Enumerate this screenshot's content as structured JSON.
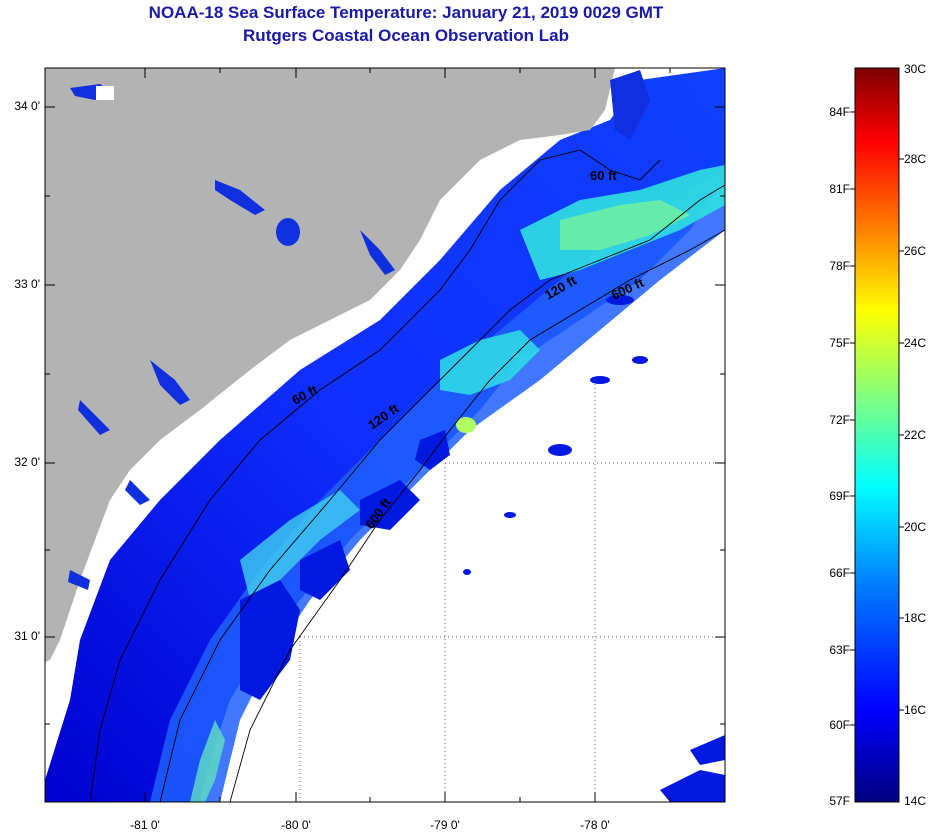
{
  "title": {
    "line1": "NOAA-18 Sea Surface Temperature:  January 21, 2019 0029 GMT",
    "line2": "Rutgers Coastal Ocean Observation Lab"
  },
  "map": {
    "lat_labels": [
      "34 0'",
      "33 0'",
      "32 0'",
      "31 0'"
    ],
    "lon_labels": [
      "-81 0'",
      "-80 0'",
      "-79 0'",
      "-78 0'"
    ],
    "contour_labels": [
      "60 ft",
      "120 ft",
      "600 ft",
      "60 ft",
      "120 ft",
      "600 ft"
    ],
    "colors": {
      "land": "#b3b3b3",
      "no_data": "#ffffff",
      "outline": "#000000"
    }
  },
  "colorbar": {
    "fahrenheit_labels": [
      "84F",
      "81F",
      "78F",
      "75F",
      "72F",
      "69F",
      "66F",
      "63F",
      "60F",
      "57F"
    ],
    "celsius_labels": [
      "30C",
      "28C",
      "26C",
      "24C",
      "22C",
      "20C",
      "18C",
      "16C",
      "14C"
    ],
    "gradient": [
      "#00007f",
      "#0000ff",
      "#0080ff",
      "#00ffff",
      "#80ff80",
      "#ffff00",
      "#ff8000",
      "#ff0000",
      "#7f0000"
    ]
  }
}
